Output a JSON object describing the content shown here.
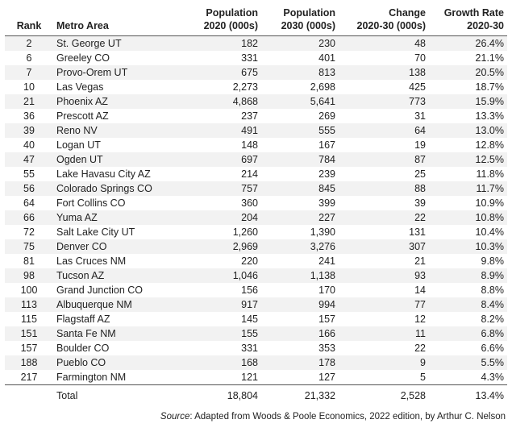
{
  "table": {
    "headers": {
      "rank": "Rank",
      "metro": "Metro Area",
      "pop2020": [
        "Population",
        "2020 (000s)"
      ],
      "pop2030": [
        "Population",
        "2030 (000s)"
      ],
      "change": [
        "Change",
        "2020-30 (000s)"
      ],
      "growth": [
        "Growth Rate",
        "2020-30"
      ]
    },
    "rows": [
      {
        "rank": "2",
        "metro": "St. George UT",
        "pop2020": "182",
        "pop2030": "230",
        "change": "48",
        "growth": "26.4%"
      },
      {
        "rank": "6",
        "metro": "Greeley CO",
        "pop2020": "331",
        "pop2030": "401",
        "change": "70",
        "growth": "21.1%"
      },
      {
        "rank": "7",
        "metro": "Provo-Orem UT",
        "pop2020": "675",
        "pop2030": "813",
        "change": "138",
        "growth": "20.5%"
      },
      {
        "rank": "10",
        "metro": "Las Vegas",
        "pop2020": "2,273",
        "pop2030": "2,698",
        "change": "425",
        "growth": "18.7%"
      },
      {
        "rank": "21",
        "metro": "Phoenix AZ",
        "pop2020": "4,868",
        "pop2030": "5,641",
        "change": "773",
        "growth": "15.9%"
      },
      {
        "rank": "36",
        "metro": "Prescott AZ",
        "pop2020": "237",
        "pop2030": "269",
        "change": "31",
        "growth": "13.3%"
      },
      {
        "rank": "39",
        "metro": "Reno NV",
        "pop2020": "491",
        "pop2030": "555",
        "change": "64",
        "growth": "13.0%"
      },
      {
        "rank": "40",
        "metro": "Logan UT",
        "pop2020": "148",
        "pop2030": "167",
        "change": "19",
        "growth": "12.8%"
      },
      {
        "rank": "47",
        "metro": "Ogden UT",
        "pop2020": "697",
        "pop2030": "784",
        "change": "87",
        "growth": "12.5%"
      },
      {
        "rank": "55",
        "metro": "Lake Havasu City AZ",
        "pop2020": "214",
        "pop2030": "239",
        "change": "25",
        "growth": "11.8%"
      },
      {
        "rank": "56",
        "metro": "Colorado Springs CO",
        "pop2020": "757",
        "pop2030": "845",
        "change": "88",
        "growth": "11.7%"
      },
      {
        "rank": "64",
        "metro": "Fort Collins CO",
        "pop2020": "360",
        "pop2030": "399",
        "change": "39",
        "growth": "10.9%"
      },
      {
        "rank": "66",
        "metro": "Yuma AZ",
        "pop2020": "204",
        "pop2030": "227",
        "change": "22",
        "growth": "10.8%"
      },
      {
        "rank": "72",
        "metro": "Salt Lake City UT",
        "pop2020": "1,260",
        "pop2030": "1,390",
        "change": "131",
        "growth": "10.4%"
      },
      {
        "rank": "75",
        "metro": "Denver CO",
        "pop2020": "2,969",
        "pop2030": "3,276",
        "change": "307",
        "growth": "10.3%"
      },
      {
        "rank": "81",
        "metro": "Las Cruces NM",
        "pop2020": "220",
        "pop2030": "241",
        "change": "21",
        "growth": "9.8%"
      },
      {
        "rank": "98",
        "metro": "Tucson AZ",
        "pop2020": "1,046",
        "pop2030": "1,138",
        "change": "93",
        "growth": "8.9%"
      },
      {
        "rank": "100",
        "metro": "Grand Junction CO",
        "pop2020": "156",
        "pop2030": "170",
        "change": "14",
        "growth": "8.8%"
      },
      {
        "rank": "113",
        "metro": "Albuquerque NM",
        "pop2020": "917",
        "pop2030": "994",
        "change": "77",
        "growth": "8.4%"
      },
      {
        "rank": "115",
        "metro": "Flagstaff AZ",
        "pop2020": "145",
        "pop2030": "157",
        "change": "12",
        "growth": "8.2%"
      },
      {
        "rank": "151",
        "metro": "Santa Fe NM",
        "pop2020": "155",
        "pop2030": "166",
        "change": "11",
        "growth": "6.8%"
      },
      {
        "rank": "157",
        "metro": "Boulder CO",
        "pop2020": "331",
        "pop2030": "353",
        "change": "22",
        "growth": "6.6%"
      },
      {
        "rank": "188",
        "metro": "Pueblo CO",
        "pop2020": "168",
        "pop2030": "178",
        "change": "9",
        "growth": "5.5%"
      },
      {
        "rank": "217",
        "metro": "Farmington NM",
        "pop2020": "121",
        "pop2030": "127",
        "change": "5",
        "growth": "4.3%"
      }
    ],
    "total": {
      "rank": "",
      "metro": "Total",
      "pop2020": "18,804",
      "pop2030": "21,332",
      "change": "2,528",
      "growth": "13.4%"
    }
  },
  "source": {
    "label": "Source",
    "text": ": Adapted from Woods & Poole Economics, 2022 edition, by Arthur C. Nelson"
  }
}
